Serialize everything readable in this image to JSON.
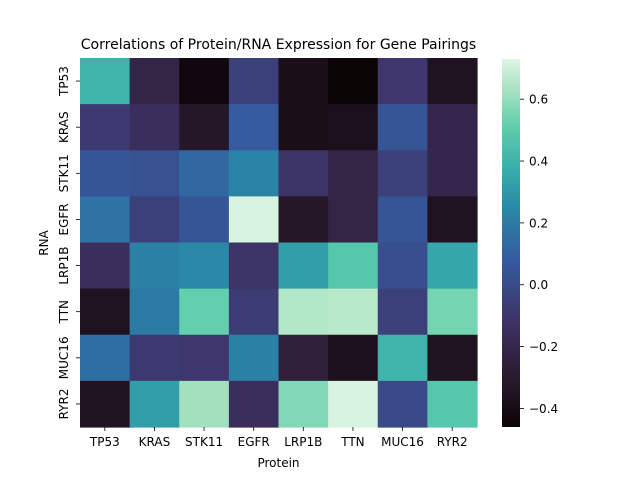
{
  "chart_data": {
    "type": "heatmap",
    "title": "Correlations of Protein/RNA Expression for Gene Pairings",
    "xlabel": "Protein",
    "ylabel": "RNA",
    "x_categories": [
      "TP53",
      "KRAS",
      "STK11",
      "EGFR",
      "LRP1B",
      "TTN",
      "MUC16",
      "RYR2"
    ],
    "y_categories": [
      "TP53",
      "KRAS",
      "STK11",
      "EGFR",
      "LRP1B",
      "TTN",
      "MUC16",
      "RYR2"
    ],
    "values": [
      [
        0.4,
        -0.22,
        -0.43,
        -0.05,
        -0.38,
        -0.46,
        -0.1,
        -0.35
      ],
      [
        -0.08,
        -0.15,
        -0.32,
        0.08,
        -0.38,
        -0.37,
        0.05,
        -0.2
      ],
      [
        0.05,
        0.03,
        0.13,
        0.23,
        -0.12,
        -0.22,
        -0.05,
        -0.2
      ],
      [
        0.17,
        -0.05,
        0.05,
        0.72,
        -0.32,
        -0.22,
        0.05,
        -0.35
      ],
      [
        -0.15,
        0.22,
        0.25,
        -0.12,
        0.32,
        0.48,
        0.02,
        0.35
      ],
      [
        -0.35,
        0.2,
        0.52,
        -0.07,
        0.65,
        0.66,
        -0.05,
        0.55
      ],
      [
        0.15,
        -0.08,
        -0.1,
        0.22,
        -0.25,
        -0.37,
        0.4,
        -0.35
      ],
      [
        -0.35,
        0.32,
        0.62,
        -0.15,
        0.57,
        0.72,
        0.0,
        0.48
      ]
    ],
    "colorbar": {
      "min": -0.46,
      "max": 0.73,
      "ticks": [
        -0.4,
        -0.2,
        0.0,
        0.2,
        0.4,
        0.6
      ],
      "tick_labels": [
        "−0.4",
        "−0.2",
        "0.0",
        "0.2",
        "0.4",
        "0.6"
      ]
    },
    "colormap": "mako",
    "grid": false
  }
}
